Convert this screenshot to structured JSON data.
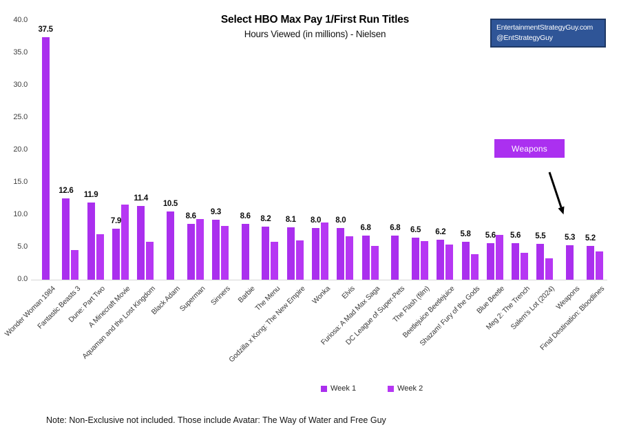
{
  "note": "Note: Non-Exclusive not included. Those include Avatar: The Way of Water and Free Guy",
  "badge": {
    "line1": "EntertainmentStrategyGuy.com",
    "line2": "@EntStrategyGuy",
    "bg": "#2F5597",
    "border": "#1F3864"
  },
  "annotation": {
    "label": "Weapons",
    "bg": "#AB30F0"
  },
  "chart_data": {
    "type": "bar",
    "title": "Select HBO Max Pay 1/First Run Titles",
    "subtitle": "Hours Viewed (in millions) - Nielsen",
    "xlabel": "",
    "ylabel": "",
    "ylim": [
      0,
      40
    ],
    "yticks": [
      "40.0",
      "35.0",
      "30.0",
      "25.0",
      "20.0",
      "15.0",
      "10.0",
      "5.0",
      "0.0"
    ],
    "grid": false,
    "legend_position": "bottom",
    "categories": [
      "Wonder Woman 1984",
      "Fantastic Beasts 3",
      "Dune: Part Two",
      "A Minecraft Movie",
      "Aquaman and the Lost Kingdom",
      "Black Adam",
      "Superman",
      "Sinners",
      "Barbie",
      "The Menu",
      "Godzilla x Kong: The New Empire",
      "Wonka",
      "Elvis",
      "Furiosa: A Mad Max Saga",
      "DC League of Super-Pets",
      "The Flash (film)",
      "Beetlejuice Beetlejuice",
      "Shazam! Fury of the Gods",
      "Blue Beetle",
      "Meg 2: The Trench",
      "Salem's Lot (2024)",
      "Weapons",
      "Final Destination: Bloodlines"
    ],
    "series": [
      {
        "name": "Week 1",
        "color": "#AA2FEE",
        "values": [
          37.5,
          12.6,
          11.9,
          7.9,
          11.4,
          10.5,
          8.6,
          9.3,
          8.6,
          8.2,
          8.1,
          8.0,
          8.0,
          6.8,
          6.8,
          6.5,
          6.2,
          5.8,
          5.6,
          5.6,
          5.5,
          5.3,
          5.2
        ]
      },
      {
        "name": "Week 2",
        "color": "#B637F3",
        "values": [
          null,
          4.6,
          7.0,
          11.6,
          5.9,
          null,
          9.4,
          8.3,
          null,
          5.8,
          6.1,
          8.8,
          6.7,
          5.2,
          null,
          6.0,
          5.4,
          3.9,
          6.9,
          4.1,
          3.3,
          null,
          4.4
        ]
      }
    ],
    "data_labels": [
      "37.5",
      "12.6",
      "11.9",
      "7.9",
      "11.4",
      "10.5",
      "8.6",
      "9.3",
      "8.6",
      "8.2",
      "8.1",
      "8.0",
      "8.0",
      "6.8",
      "6.8",
      "6.5",
      "6.2",
      "5.8",
      "5.6",
      "5.6",
      "5.5",
      "5.3",
      "5.2"
    ]
  }
}
